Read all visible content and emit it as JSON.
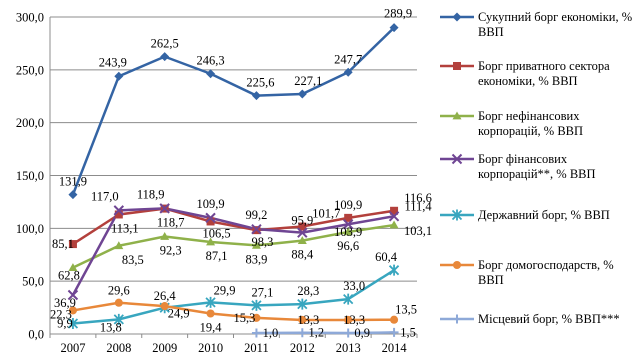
{
  "chart_data": {
    "type": "line",
    "title": "",
    "xlabel": "",
    "ylabel": "",
    "x": [
      "2007",
      "2008",
      "2009",
      "2010",
      "2011",
      "2012",
      "2013",
      "2014"
    ],
    "ylim": [
      0,
      300
    ],
    "yticks": [
      "0,0",
      "50,0",
      "100,0",
      "150,0",
      "200,0",
      "250,0",
      "300,0"
    ],
    "grid": "horizontal",
    "legend_position": "right",
    "series": [
      {
        "name": "Сукупний борг економіки, % ВВП",
        "color": "#3464a4",
        "marker": "diamond",
        "values": [
          131.9,
          243.9,
          262.5,
          246.3,
          225.6,
          227.1,
          247.7,
          289.9
        ],
        "labels": [
          "131,9",
          "243,9",
          "262,5",
          "246,3",
          "225,6",
          "227,1",
          "247,7",
          "289,9"
        ]
      },
      {
        "name": "Борг приватного сектора економіки, % ВВП",
        "color": "#b3403c",
        "marker": "square",
        "values": [
          85.1,
          113.1,
          118.7,
          106.5,
          98.3,
          101.7,
          109.9,
          116.6
        ],
        "labels": [
          "85,1",
          "113,1",
          "118,7",
          "106,5",
          "98,3",
          "101,7",
          "109,9",
          "116,6"
        ]
      },
      {
        "name": "Борг нефінансових корпорацій, % ВВП",
        "color": "#8fb14a",
        "marker": "triangle",
        "values": [
          62.8,
          83.5,
          92.3,
          87.1,
          83.9,
          88.4,
          96.6,
          103.1
        ],
        "labels": [
          "62,8",
          "83,5",
          "92,3",
          "87,1",
          "83,9",
          "88,4",
          "96,6",
          "103,1"
        ]
      },
      {
        "name": "Борг фінансових корпорацій**, % ВВП",
        "color": "#6f4593",
        "marker": "x",
        "values": [
          36.9,
          117.0,
          118.9,
          109.9,
          99.2,
          95.9,
          103.9,
          111.4
        ],
        "labels": [
          "36,9",
          "117,0",
          "118,9",
          "109,9",
          "99,2",
          "95,9",
          "103,9",
          "111,4"
        ]
      },
      {
        "name": "Державний борг, % ВВП",
        "color": "#38a6bf",
        "marker": "star",
        "values": [
          9.9,
          13.8,
          24.9,
          29.9,
          27.1,
          28.3,
          33.0,
          60.4
        ],
        "labels": [
          "9,9",
          "13,8",
          "24,9",
          "29,9",
          "27,1",
          "28,3",
          "33,0",
          "60,4"
        ]
      },
      {
        "name": "Борг домогосподарств, % ВВП",
        "color": "#e8883a",
        "marker": "circle",
        "values": [
          22.3,
          29.6,
          26.4,
          19.4,
          15.3,
          13.3,
          13.3,
          13.5
        ],
        "labels": [
          "22,3",
          "29,6",
          "26,4",
          "19,4",
          "15,3",
          "13,3",
          "13,3",
          "13,5"
        ]
      },
      {
        "name": "Місцевий борг, % ВВП***",
        "color": "#8ea9d8",
        "marker": "plus",
        "values": [
          null,
          null,
          null,
          null,
          1.0,
          1.2,
          0.9,
          1.5
        ],
        "labels": [
          "",
          "",
          "",
          "",
          "1,0",
          "1,2",
          "0,9",
          "1,5"
        ]
      }
    ]
  }
}
